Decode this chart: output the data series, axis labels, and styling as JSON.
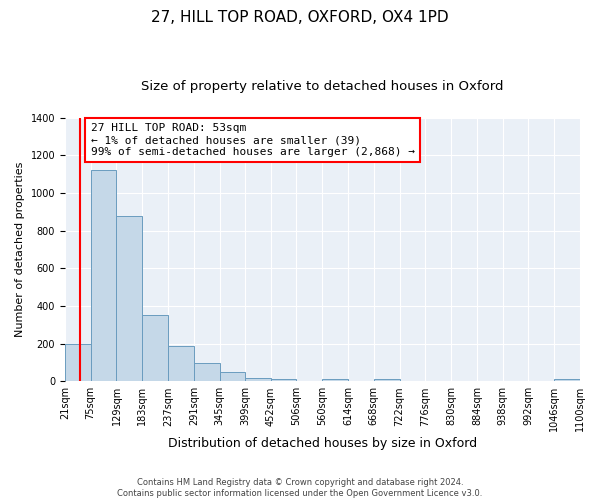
{
  "title": "27, HILL TOP ROAD, OXFORD, OX4 1PD",
  "subtitle": "Size of property relative to detached houses in Oxford",
  "xlabel": "Distribution of detached houses by size in Oxford",
  "ylabel": "Number of detached properties",
  "bin_edges": [
    21,
    75,
    129,
    183,
    237,
    291,
    345,
    399,
    452,
    506,
    560,
    614,
    668,
    722,
    776,
    830,
    884,
    938,
    992,
    1046,
    1100
  ],
  "bin_labels": [
    "21sqm",
    "75sqm",
    "129sqm",
    "183sqm",
    "237sqm",
    "291sqm",
    "345sqm",
    "399sqm",
    "452sqm",
    "506sqm",
    "560sqm",
    "614sqm",
    "668sqm",
    "722sqm",
    "776sqm",
    "830sqm",
    "884sqm",
    "938sqm",
    "992sqm",
    "1046sqm",
    "1100sqm"
  ],
  "counts": [
    200,
    1120,
    880,
    350,
    190,
    95,
    50,
    20,
    15,
    0,
    15,
    0,
    10,
    0,
    0,
    0,
    0,
    0,
    0,
    10
  ],
  "bar_color": "#c5d8e8",
  "bar_edge_color": "#6a9cbf",
  "red_line_x": 53,
  "annotation_text": "27 HILL TOP ROAD: 53sqm\n← 1% of detached houses are smaller (39)\n99% of semi-detached houses are larger (2,868) →",
  "annotation_box_color": "white",
  "annotation_box_edge": "red",
  "ylim": [
    0,
    1400
  ],
  "yticks": [
    0,
    200,
    400,
    600,
    800,
    1000,
    1200,
    1400
  ],
  "background_color": "#eaf0f7",
  "footer_line1": "Contains HM Land Registry data © Crown copyright and database right 2024.",
  "footer_line2": "Contains public sector information licensed under the Open Government Licence v3.0.",
  "title_fontsize": 11,
  "subtitle_fontsize": 9.5,
  "xlabel_fontsize": 9,
  "ylabel_fontsize": 8,
  "tick_fontsize": 7,
  "annotation_fontsize": 8
}
